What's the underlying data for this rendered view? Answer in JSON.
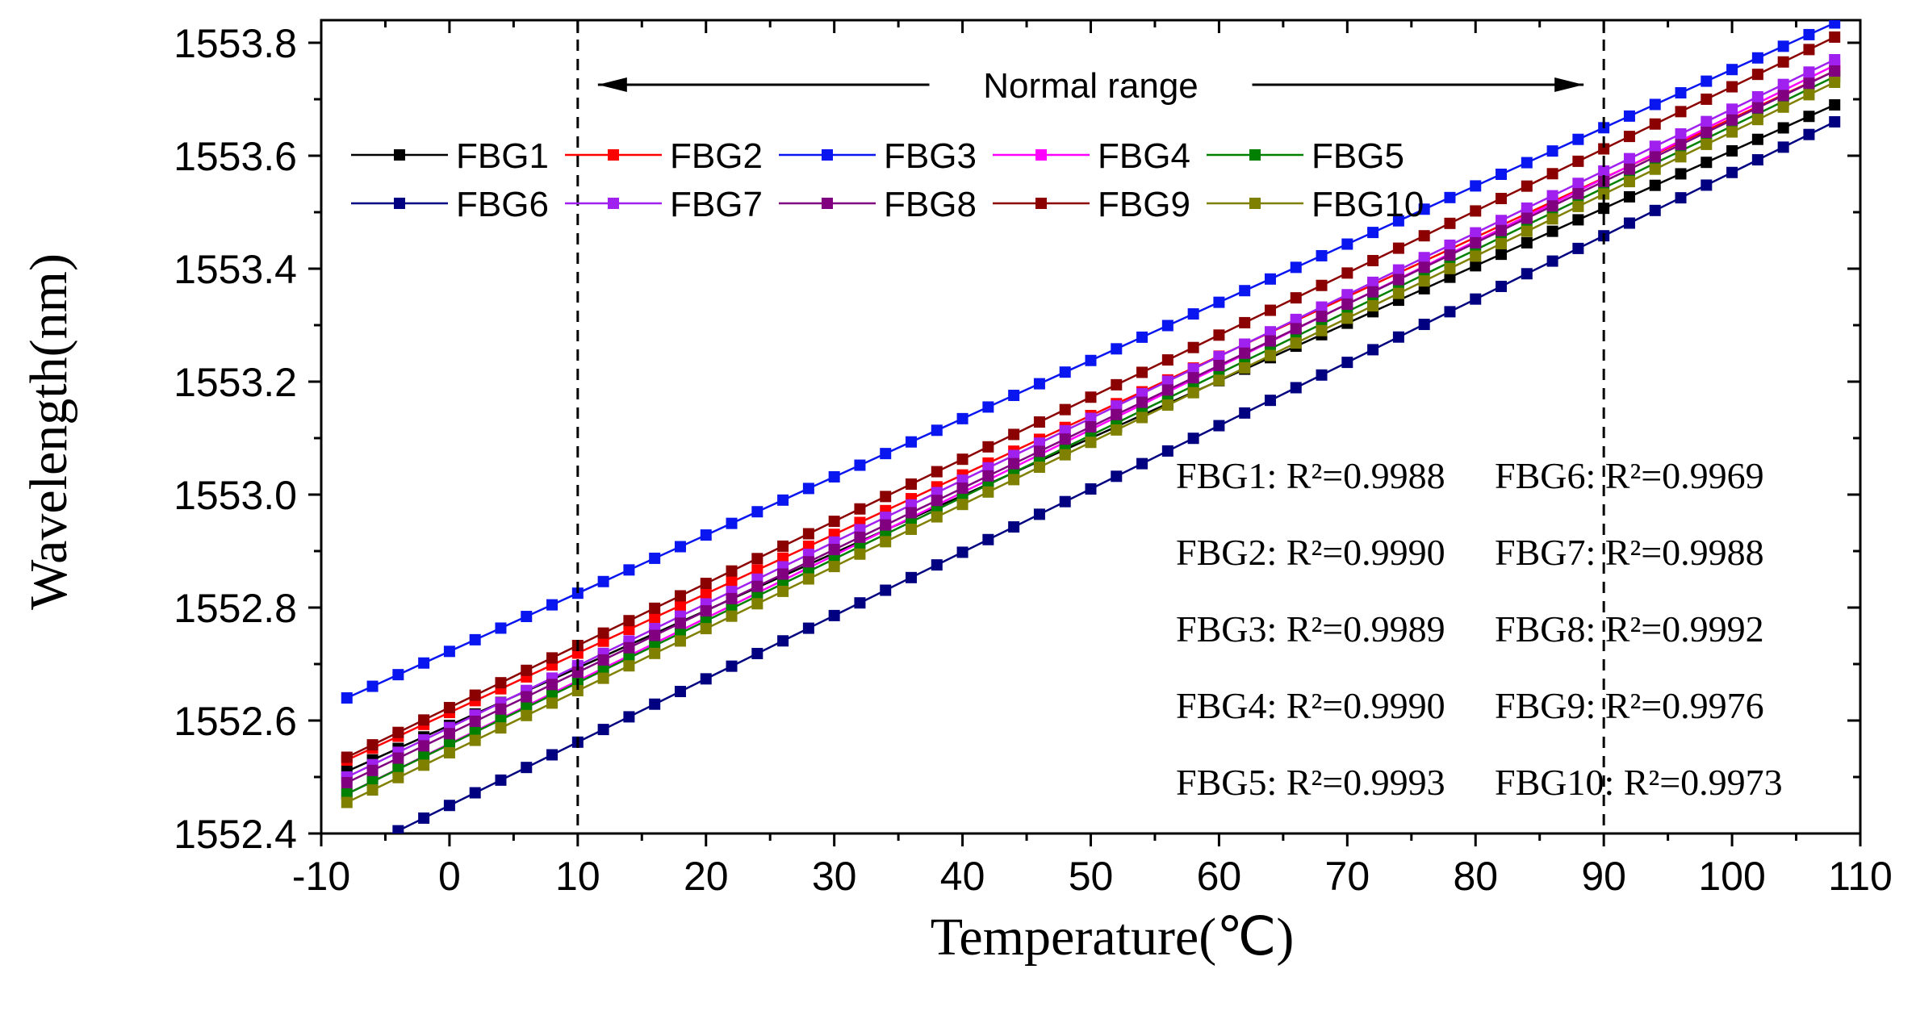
{
  "chart_data": {
    "type": "line",
    "xlabel": "Temperature(℃)",
    "ylabel": "Wavelength(nm)",
    "xlim": [
      -10,
      110
    ],
    "ylim": [
      1552.4,
      1553.84
    ],
    "x_ticks": [
      "-10",
      "0",
      "10",
      "20",
      "30",
      "40",
      "50",
      "60",
      "70",
      "80",
      "90",
      "100",
      "110"
    ],
    "y_ticks": [
      "1552.4",
      "1552.6",
      "1552.8",
      "1553.0",
      "1553.2",
      "1553.4",
      "1553.6",
      "1553.8"
    ],
    "x": [
      -8,
      108
    ],
    "x_step": 2,
    "legend_placement": "top-left",
    "grid": false,
    "marker": "square",
    "series": [
      {
        "name": "FBG1",
        "color": "#000000",
        "start": 1552.51,
        "end": 1553.69
      },
      {
        "name": "FBG2",
        "color": "#ff0000",
        "start": 1552.53,
        "end": 1553.75
      },
      {
        "name": "FBG3",
        "color": "#0a16f0",
        "start": 1552.64,
        "end": 1553.835
      },
      {
        "name": "FBG4",
        "color": "#ff00ff",
        "start": 1552.47,
        "end": 1553.76
      },
      {
        "name": "FBG5",
        "color": "#008000",
        "start": 1552.47,
        "end": 1553.74
      },
      {
        "name": "FBG6",
        "color": "#000080",
        "start": 1552.36,
        "end": 1553.66
      },
      {
        "name": "FBG7",
        "color": "#a020f0",
        "start": 1552.5,
        "end": 1553.77
      },
      {
        "name": "FBG8",
        "color": "#800080",
        "start": 1552.49,
        "end": 1553.75
      },
      {
        "name": "FBG9",
        "color": "#8b0000",
        "start": 1552.535,
        "end": 1553.81
      },
      {
        "name": "FBG10",
        "color": "#808000",
        "start": 1552.455,
        "end": 1553.73
      }
    ],
    "vlines": [
      10,
      90
    ],
    "annotations": {
      "range_label": "Normal range",
      "fits": [
        [
          "FBG1: R²=0.9988",
          "FBG6: R²=0.9969"
        ],
        [
          "FBG2: R²=0.9990",
          "FBG7: R²=0.9988"
        ],
        [
          "FBG3: R²=0.9989",
          "FBG8: R²=0.9992"
        ],
        [
          "FBG4: R²=0.9990",
          "FBG9: R²=0.9976"
        ],
        [
          "FBG5: R²=0.9993",
          "FBG10: R²=0.9973"
        ]
      ]
    }
  }
}
